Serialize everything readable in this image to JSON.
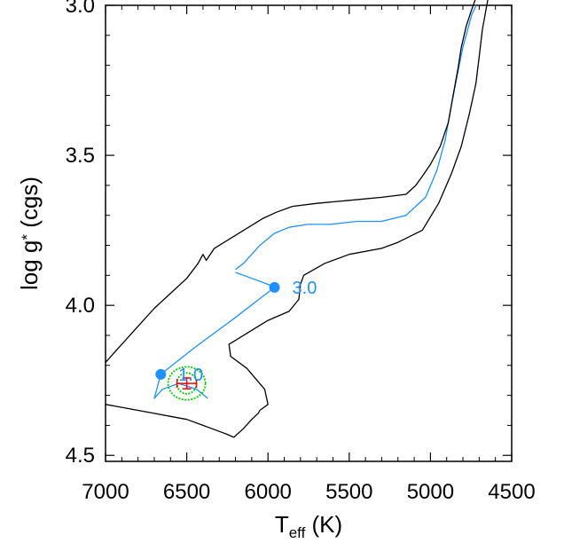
{
  "chart_data": {
    "type": "line",
    "xlabel_main": "T",
    "xlabel_sub": "eff",
    "xlabel_unit": " (K)",
    "ylabel": "log g",
    "ylabel_sub": "*",
    "ylabel_unit": " (cgs)",
    "xlim": [
      7000,
      4500
    ],
    "ylim": [
      4.52,
      3.0
    ],
    "x_ticks": [
      7000,
      6500,
      6000,
      5500,
      5000,
      4500
    ],
    "y_ticks": [
      3.0,
      3.5,
      4.0,
      4.5
    ],
    "y_tick_labels": [
      "3.0",
      "3.5",
      "4.0",
      "4.5"
    ],
    "colors": {
      "track": "#1e90ff",
      "bounds": "#000000",
      "contour": "#00cc00",
      "measurement": "#ff0000"
    },
    "series": [
      {
        "role": "track",
        "x": [
          6200,
          6150,
          6050,
          5960,
          5870,
          5760,
          5620,
          5450,
          5300,
          5150,
          5030,
          4960,
          4910,
          4870,
          4830,
          4800,
          4770,
          4745,
          4718
        ],
        "y": [
          3.88,
          3.86,
          3.8,
          3.76,
          3.74,
          3.73,
          3.73,
          3.72,
          3.72,
          3.7,
          3.64,
          3.55,
          3.45,
          3.33,
          3.22,
          3.14,
          3.08,
          3.03,
          3.0
        ]
      },
      {
        "role": "track",
        "x": [
          6200,
          6100,
          6000,
          5960,
          6200,
          6450,
          6660,
          6700,
          6650,
          6550,
          6440,
          6370
        ],
        "y": [
          3.89,
          3.91,
          3.93,
          3.94,
          4.04,
          4.14,
          4.23,
          4.31,
          4.28,
          4.26,
          4.28,
          4.31
        ]
      },
      {
        "role": "upper-bound",
        "x": [
          7000,
          6900,
          6800,
          6700,
          6600,
          6500,
          6430,
          6400,
          6380,
          6330,
          6150,
          6030,
          5950,
          5850,
          5700,
          5500,
          5300,
          5150,
          5090,
          5050,
          5000,
          4940,
          4890,
          4860,
          4830,
          4810,
          4780,
          4750,
          4710,
          4680,
          4660,
          4640
        ],
        "y": [
          4.19,
          4.13,
          4.07,
          4.01,
          3.96,
          3.91,
          3.86,
          3.83,
          3.85,
          3.81,
          3.75,
          3.71,
          3.69,
          3.67,
          3.66,
          3.65,
          3.64,
          3.63,
          3.6,
          3.57,
          3.53,
          3.47,
          3.39,
          3.3,
          3.21,
          3.14,
          3.07,
          3.02,
          2.96,
          2.91,
          2.87,
          2.82
        ]
      },
      {
        "role": "lower-bound",
        "x": [
          7000,
          6900,
          6800,
          6700,
          6600,
          6500,
          6400,
          6300,
          6250,
          6210,
          6150,
          6100,
          6060,
          6050,
          6000,
          6020,
          6130,
          6230,
          6240,
          6120,
          6000,
          5870,
          5810,
          5800,
          5780,
          5650,
          5500,
          5300,
          5200,
          5050,
          4950,
          4870,
          4810,
          4760,
          4720,
          4700,
          4680,
          4660,
          4640,
          4620,
          4600,
          4570
        ],
        "y": [
          4.33,
          4.34,
          4.35,
          4.36,
          4.37,
          4.38,
          4.4,
          4.42,
          4.43,
          4.44,
          4.41,
          4.38,
          4.36,
          4.35,
          4.33,
          4.28,
          4.21,
          4.17,
          4.13,
          4.09,
          4.05,
          4.02,
          3.98,
          3.93,
          3.9,
          3.86,
          3.83,
          3.81,
          3.79,
          3.75,
          3.66,
          3.56,
          3.47,
          3.36,
          3.26,
          3.17,
          3.08,
          3.02,
          2.96,
          2.91,
          2.86,
          2.8
        ]
      }
    ],
    "markers": [
      {
        "x": 6660,
        "y": 4.23,
        "label": "1.0"
      },
      {
        "x": 5960,
        "y": 3.94,
        "label": "3.0"
      }
    ],
    "contours": [
      {
        "cx": 6500,
        "cy": 4.26,
        "rx": 60,
        "ry": 0.035
      },
      {
        "cx": 6500,
        "cy": 4.26,
        "rx": 115,
        "ry": 0.055
      }
    ],
    "measurement": {
      "x": 6500,
      "y": 4.26,
      "xerr": 60,
      "yerr": 0.018
    }
  }
}
